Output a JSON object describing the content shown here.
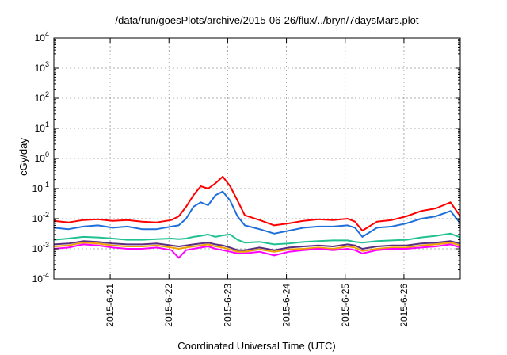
{
  "chart_data": {
    "type": "line",
    "title": "/data/run/goesPlots/archive/2015-06-26/flux/../bryn/7daysMars.plot",
    "xlabel": "Coordinated Universal Time (UTC)",
    "ylabel": "cGy/day",
    "y_scale": "log",
    "ylim": [
      0.0001,
      10000
    ],
    "xlim": [
      "2015-06-20T01:00",
      "2015-06-26T23:00"
    ],
    "x_ticks": [
      "2015-6-21",
      "2015-6-22",
      "2015-6-23",
      "2015-6-24",
      "2015-6-25",
      "2015-6-26"
    ],
    "y_ticks": [
      {
        "base": "10",
        "exp": "-4",
        "value": 0.0001
      },
      {
        "base": "10",
        "exp": "-3",
        "value": 0.001
      },
      {
        "base": "10",
        "exp": "-2",
        "value": 0.01
      },
      {
        "base": "10",
        "exp": "-1",
        "value": 0.1
      },
      {
        "base": "10",
        "exp": "0",
        "value": 1
      },
      {
        "base": "10",
        "exp": "1",
        "value": 10
      },
      {
        "base": "10",
        "exp": "2",
        "value": 100
      },
      {
        "base": "10",
        "exp": "3",
        "value": 1000
      },
      {
        "base": "10",
        "exp": "4",
        "value": 10000
      }
    ],
    "grid": true,
    "x": [
      "2015-06-20T01:00",
      "2015-06-20T07:00",
      "2015-06-20T13:00",
      "2015-06-20T19:00",
      "2015-06-21T01:00",
      "2015-06-21T07:00",
      "2015-06-21T13:00",
      "2015-06-21T19:00",
      "2015-06-22T01:00",
      "2015-06-22T04:00",
      "2015-06-22T07:00",
      "2015-06-22T10:00",
      "2015-06-22T13:00",
      "2015-06-22T16:00",
      "2015-06-22T19:00",
      "2015-06-22T22:00",
      "2015-06-23T01:00",
      "2015-06-23T04:00",
      "2015-06-23T07:00",
      "2015-06-23T13:00",
      "2015-06-23T19:00",
      "2015-06-24T01:00",
      "2015-06-24T07:00",
      "2015-06-24T13:00",
      "2015-06-24T19:00",
      "2015-06-25T01:00",
      "2015-06-25T04:00",
      "2015-06-25T07:00",
      "2015-06-25T13:00",
      "2015-06-25T19:00",
      "2015-06-26T01:00",
      "2015-06-26T07:00",
      "2015-06-26T13:00",
      "2015-06-26T19:00",
      "2015-06-26T23:00"
    ],
    "series": [
      {
        "color": "#ff0000",
        "values": [
          0.0085,
          0.0075,
          0.009,
          0.0095,
          0.0085,
          0.009,
          0.008,
          0.0075,
          0.009,
          0.012,
          0.025,
          0.06,
          0.12,
          0.1,
          0.15,
          0.25,
          0.12,
          0.04,
          0.013,
          0.009,
          0.006,
          0.007,
          0.0085,
          0.0095,
          0.009,
          0.01,
          0.008,
          0.004,
          0.008,
          0.009,
          0.012,
          0.018,
          0.022,
          0.035,
          0.012
        ]
      },
      {
        "color": "#1e6fdc",
        "values": [
          0.005,
          0.0045,
          0.0055,
          0.006,
          0.005,
          0.0055,
          0.0045,
          0.0045,
          0.0055,
          0.006,
          0.01,
          0.025,
          0.035,
          0.028,
          0.06,
          0.08,
          0.04,
          0.012,
          0.006,
          0.0045,
          0.0032,
          0.004,
          0.005,
          0.0055,
          0.0055,
          0.006,
          0.005,
          0.0025,
          0.005,
          0.0055,
          0.007,
          0.01,
          0.012,
          0.018,
          0.007
        ]
      },
      {
        "color": "#20c090",
        "values": [
          0.002,
          0.0022,
          0.0025,
          0.0024,
          0.0022,
          0.002,
          0.002,
          0.0021,
          0.0022,
          0.0021,
          0.0022,
          0.0025,
          0.0027,
          0.003,
          0.0025,
          0.0028,
          0.003,
          0.002,
          0.0016,
          0.0017,
          0.0014,
          0.0015,
          0.0017,
          0.0018,
          0.0019,
          0.0019,
          0.0017,
          0.0016,
          0.0018,
          0.0019,
          0.002,
          0.0024,
          0.0027,
          0.0032,
          0.0024
        ]
      },
      {
        "color": "#5a2d82",
        "values": [
          0.0014,
          0.0015,
          0.0018,
          0.0017,
          0.0015,
          0.0014,
          0.0014,
          0.0015,
          0.0013,
          0.0012,
          0.0013,
          0.0014,
          0.0015,
          0.0016,
          0.0014,
          0.0013,
          0.0011,
          0.0009,
          0.0009,
          0.0011,
          0.0009,
          0.0011,
          0.0012,
          0.0013,
          0.0012,
          0.0014,
          0.0013,
          0.001,
          0.0012,
          0.0013,
          0.0013,
          0.0015,
          0.0016,
          0.0018,
          0.0015
        ]
      },
      {
        "color": "#f0a000",
        "values": [
          0.0012,
          0.0013,
          0.0016,
          0.0015,
          0.0013,
          0.0012,
          0.0012,
          0.0013,
          0.0011,
          0.001,
          0.0011,
          0.0012,
          0.0013,
          0.0014,
          0.0012,
          0.0011,
          0.00095,
          0.0008,
          0.0008,
          0.00095,
          0.0008,
          0.00095,
          0.001,
          0.0011,
          0.001,
          0.0012,
          0.0011,
          0.00085,
          0.001,
          0.0011,
          0.0011,
          0.0013,
          0.0014,
          0.0016,
          0.0013
        ]
      },
      {
        "color": "#ff00ff",
        "values": [
          0.001,
          0.0011,
          0.0014,
          0.0013,
          0.0011,
          0.001,
          0.001,
          0.0011,
          0.0009,
          0.0005,
          0.0009,
          0.001,
          0.0011,
          0.0012,
          0.001,
          0.0009,
          0.0008,
          0.0007,
          0.0007,
          0.0008,
          0.0006,
          0.0008,
          0.0009,
          0.001,
          0.0009,
          0.001,
          0.0009,
          0.0007,
          0.0009,
          0.001,
          0.001,
          0.0011,
          0.0012,
          0.0014,
          0.0011
        ]
      }
    ]
  }
}
